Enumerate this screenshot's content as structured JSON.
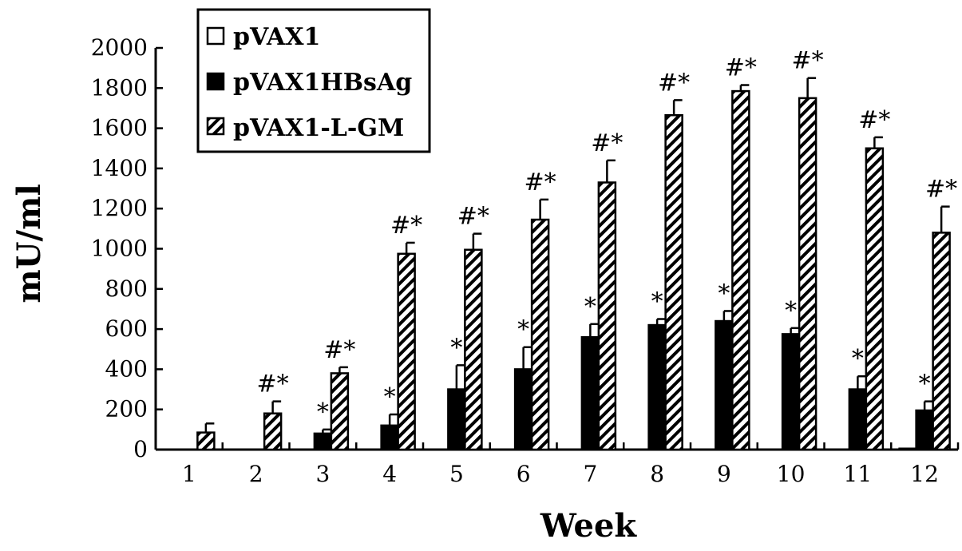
{
  "chart_data": {
    "type": "bar",
    "title": "",
    "xlabel": "Week",
    "ylabel": "mU/ml",
    "ylim": [
      0,
      2000
    ],
    "yticks": [
      "0",
      "200",
      "400",
      "600",
      "800",
      "1000",
      "1200",
      "1400",
      "1600",
      "1800",
      "2000"
    ],
    "categories": [
      "1",
      "2",
      "3",
      "4",
      "5",
      "6",
      "7",
      "8",
      "9",
      "10",
      "11",
      "12"
    ],
    "grid": false,
    "legend_position": "top-left",
    "series": [
      {
        "name": "pVAX1",
        "fill": "open",
        "values": [
          0,
          0,
          0,
          0,
          0,
          0,
          0,
          0,
          0,
          0,
          0,
          5
        ],
        "errors": [
          0,
          0,
          0,
          0,
          0,
          0,
          0,
          0,
          0,
          0,
          0,
          0
        ],
        "annotations": [
          "",
          "",
          "",
          "",
          "",
          "",
          "",
          "",
          "",
          "",
          "",
          ""
        ]
      },
      {
        "name": "pVAX1HBsAg",
        "fill": "solid",
        "values": [
          0,
          0,
          80,
          120,
          300,
          400,
          560,
          620,
          640,
          575,
          300,
          195
        ],
        "errors": [
          0,
          0,
          20,
          55,
          120,
          110,
          65,
          30,
          50,
          30,
          65,
          45
        ],
        "annotations": [
          "",
          "",
          "*",
          "*",
          "*",
          "*",
          "*",
          "*",
          "*",
          "*",
          "*",
          "*"
        ]
      },
      {
        "name": "pVAX1-L-GM",
        "fill": "hatched",
        "values": [
          85,
          180,
          380,
          975,
          995,
          1145,
          1330,
          1665,
          1785,
          1750,
          1500,
          1080
        ],
        "errors": [
          45,
          60,
          30,
          55,
          80,
          100,
          110,
          75,
          30,
          100,
          55,
          130
        ],
        "annotations": [
          "",
          "#*",
          "#*",
          "#*",
          "#*",
          "#*",
          "#*",
          "#*",
          "#*",
          "#*",
          "#*",
          "#*"
        ]
      }
    ]
  }
}
